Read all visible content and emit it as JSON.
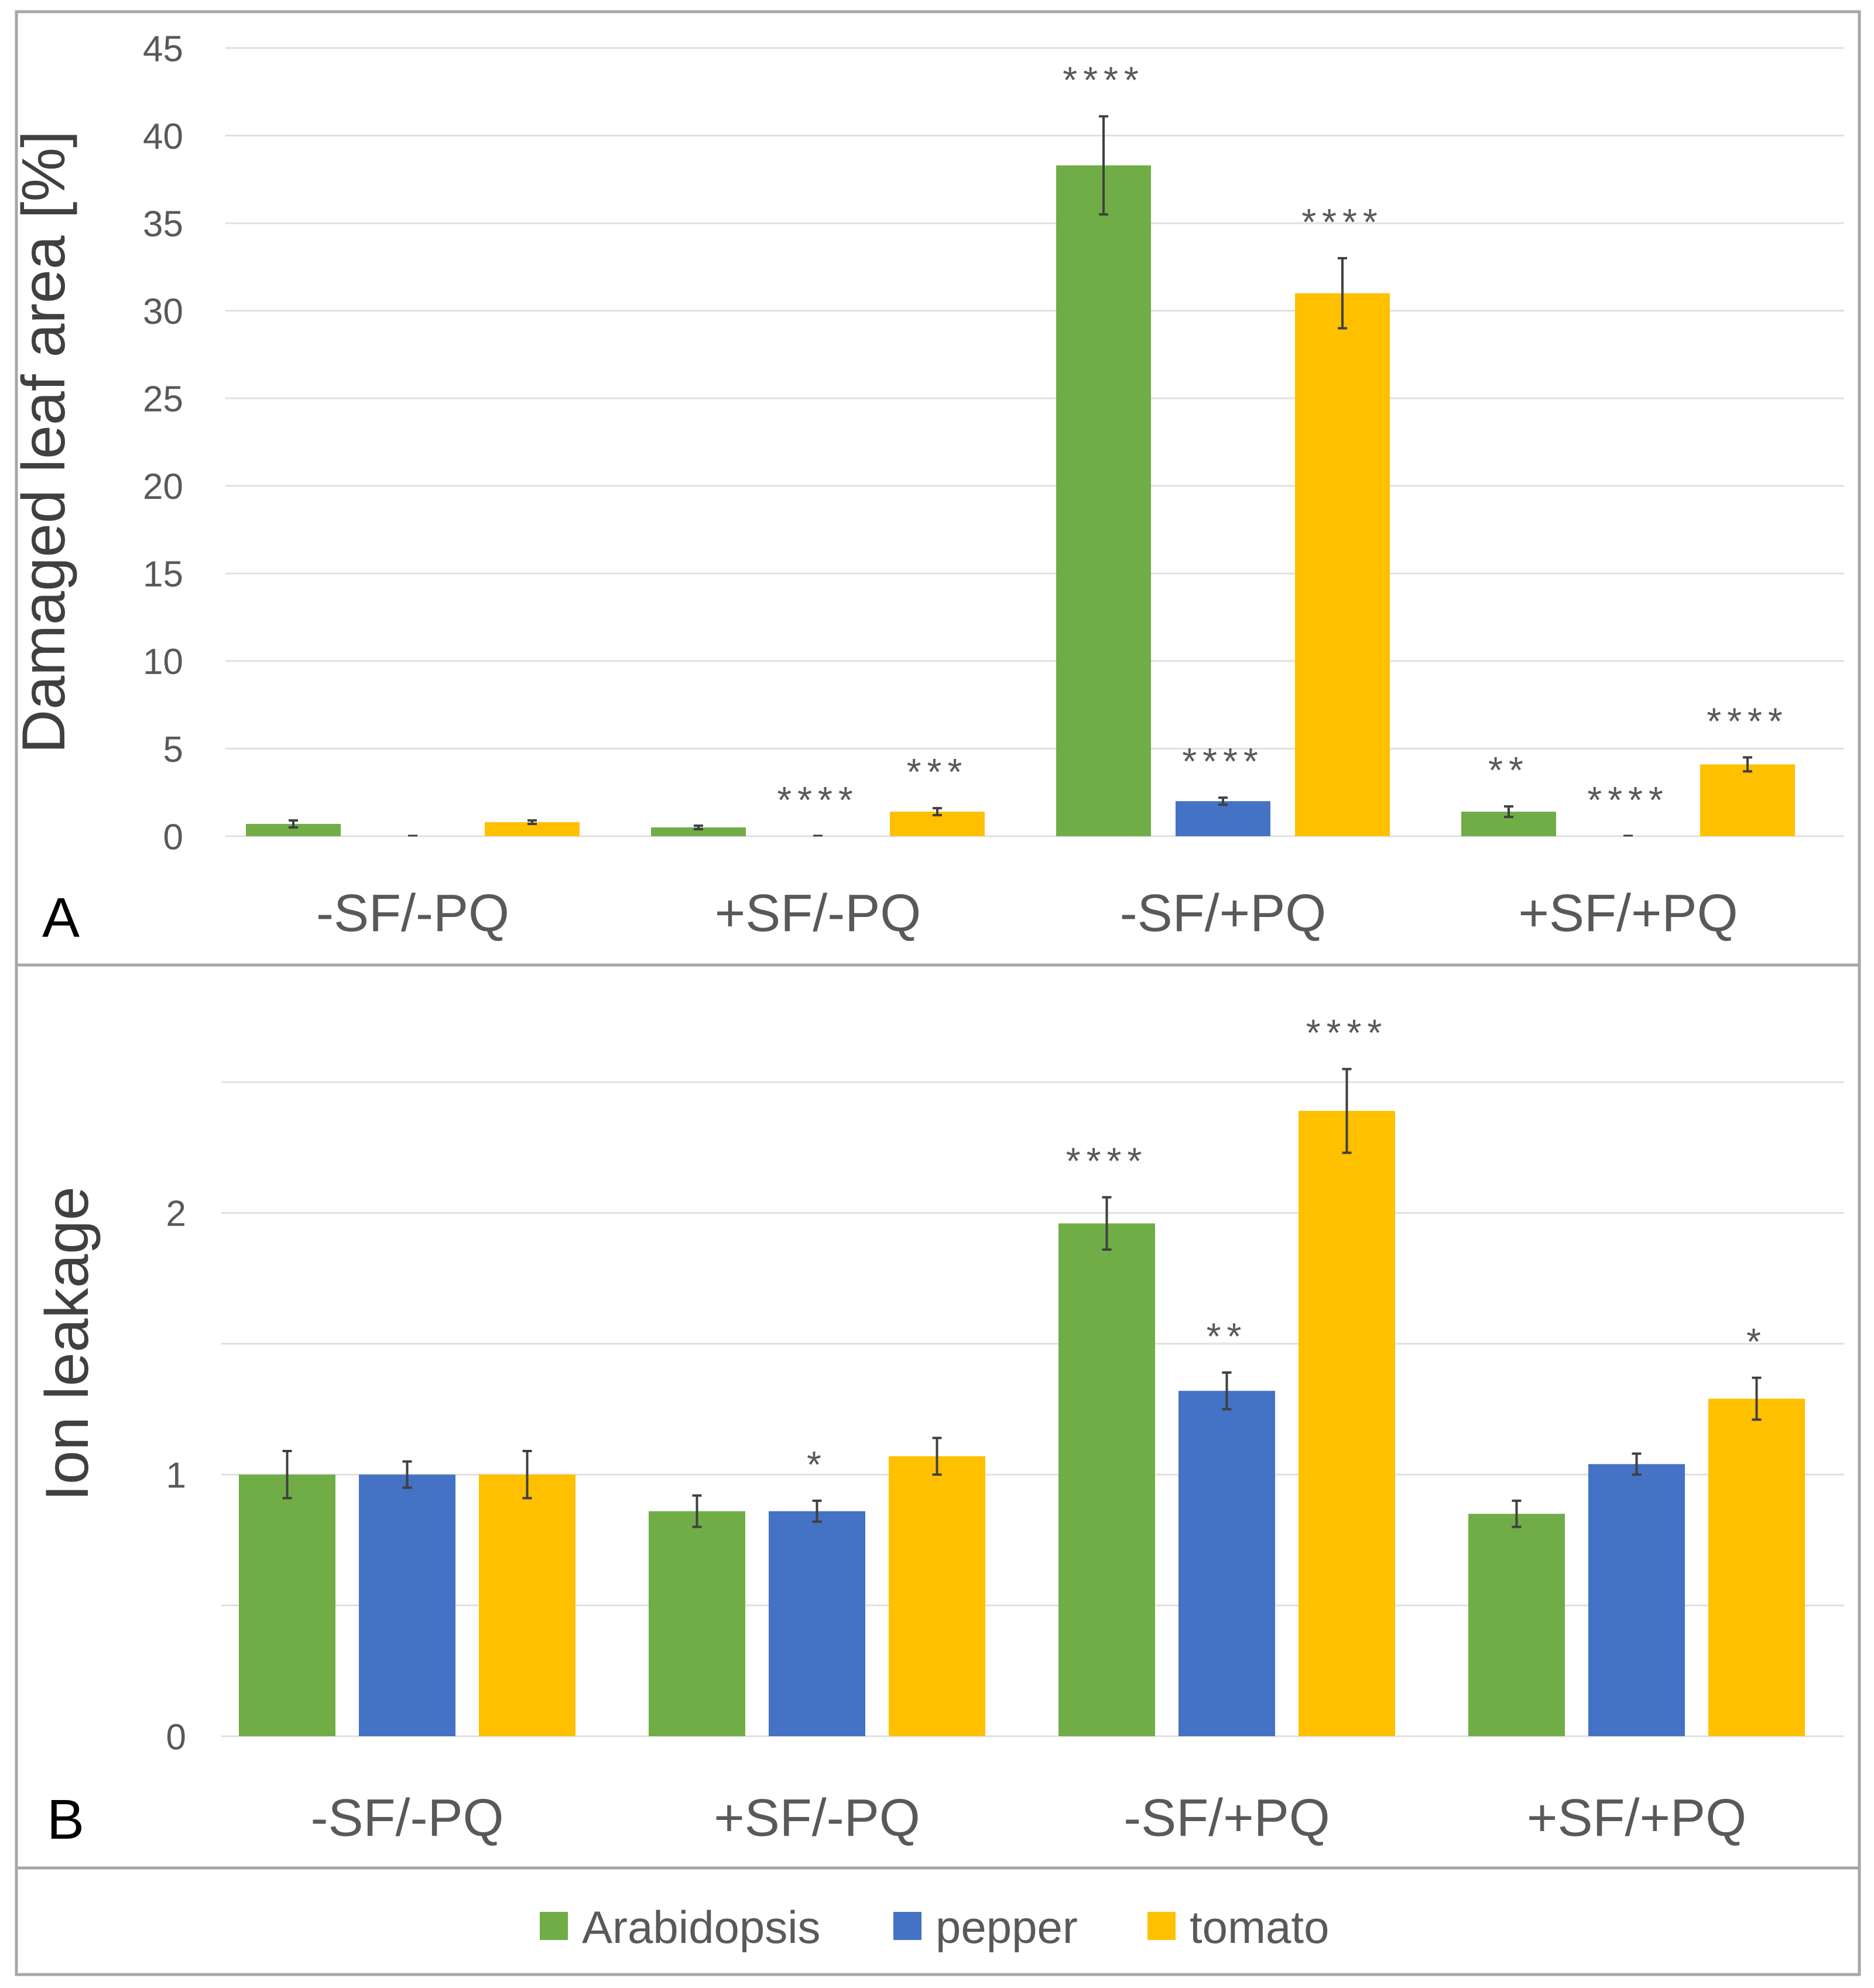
{
  "colors": {
    "Arabidopsis": "#70AD47",
    "pepper": "#4472C4",
    "tomato": "#FFC000",
    "grid": "#E0E0E0",
    "text": "#595959",
    "label": "#404040",
    "errorbar": "#404040",
    "frame": "#A6A6A6"
  },
  "legend": {
    "items": [
      "Arabidopsis",
      "pepper",
      "tomato"
    ]
  },
  "chart_data": [
    {
      "panel": "A",
      "type": "bar",
      "ylabel": "Damaged leaf area [%]",
      "ylim": [
        0,
        45
      ],
      "yticks": [
        0,
        5,
        10,
        15,
        20,
        25,
        30,
        35,
        40,
        45
      ],
      "ytick_labels": [
        "0",
        "5",
        "10",
        "15",
        "20",
        "25",
        "30",
        "35",
        "40",
        "45"
      ],
      "grid": true,
      "categories": [
        "-SF/-PQ",
        "+SF/-PQ",
        "-SF/+PQ",
        "+SF/+PQ"
      ],
      "series": [
        {
          "name": "Arabidopsis",
          "values": [
            0.7,
            0.5,
            38.3,
            1.4
          ],
          "errors": [
            0.2,
            0.1,
            2.8,
            0.3
          ],
          "significance": [
            "",
            "",
            "****",
            "**"
          ]
        },
        {
          "name": "pepper",
          "values": [
            0.0,
            0.0,
            2.0,
            0.0
          ],
          "errors": [
            0.0,
            0.0,
            0.2,
            0.0
          ],
          "significance": [
            "",
            "****",
            "****",
            "****"
          ]
        },
        {
          "name": "tomato",
          "values": [
            0.8,
            1.4,
            31.0,
            4.1
          ],
          "errors": [
            0.1,
            0.2,
            2.0,
            0.4
          ],
          "significance": [
            "",
            "***",
            "****",
            "****"
          ]
        }
      ]
    },
    {
      "panel": "B",
      "type": "bar",
      "ylabel": "Ion leakage",
      "ylim": [
        0,
        2.5
      ],
      "yticks": [
        0,
        0.5,
        1,
        1.5,
        2,
        2.5
      ],
      "ytick_labels": [
        "0",
        "",
        "1",
        "",
        "2",
        ""
      ],
      "grid": true,
      "categories": [
        "-SF/-PQ",
        "+SF/-PQ",
        "-SF/+PQ",
        "+SF/+PQ"
      ],
      "series": [
        {
          "name": "Arabidopsis",
          "values": [
            1.0,
            0.86,
            1.96,
            0.85
          ],
          "errors": [
            0.09,
            0.06,
            0.1,
            0.05
          ],
          "significance": [
            "",
            "",
            "****",
            ""
          ]
        },
        {
          "name": "pepper",
          "values": [
            1.0,
            0.86,
            1.32,
            1.04
          ],
          "errors": [
            0.05,
            0.04,
            0.07,
            0.04
          ],
          "significance": [
            "",
            "*",
            "**",
            ""
          ]
        },
        {
          "name": "tomato",
          "values": [
            1.0,
            1.07,
            2.39,
            1.29
          ],
          "errors": [
            0.09,
            0.07,
            0.16,
            0.08
          ],
          "significance": [
            "",
            "",
            "****",
            "*"
          ]
        }
      ]
    }
  ]
}
